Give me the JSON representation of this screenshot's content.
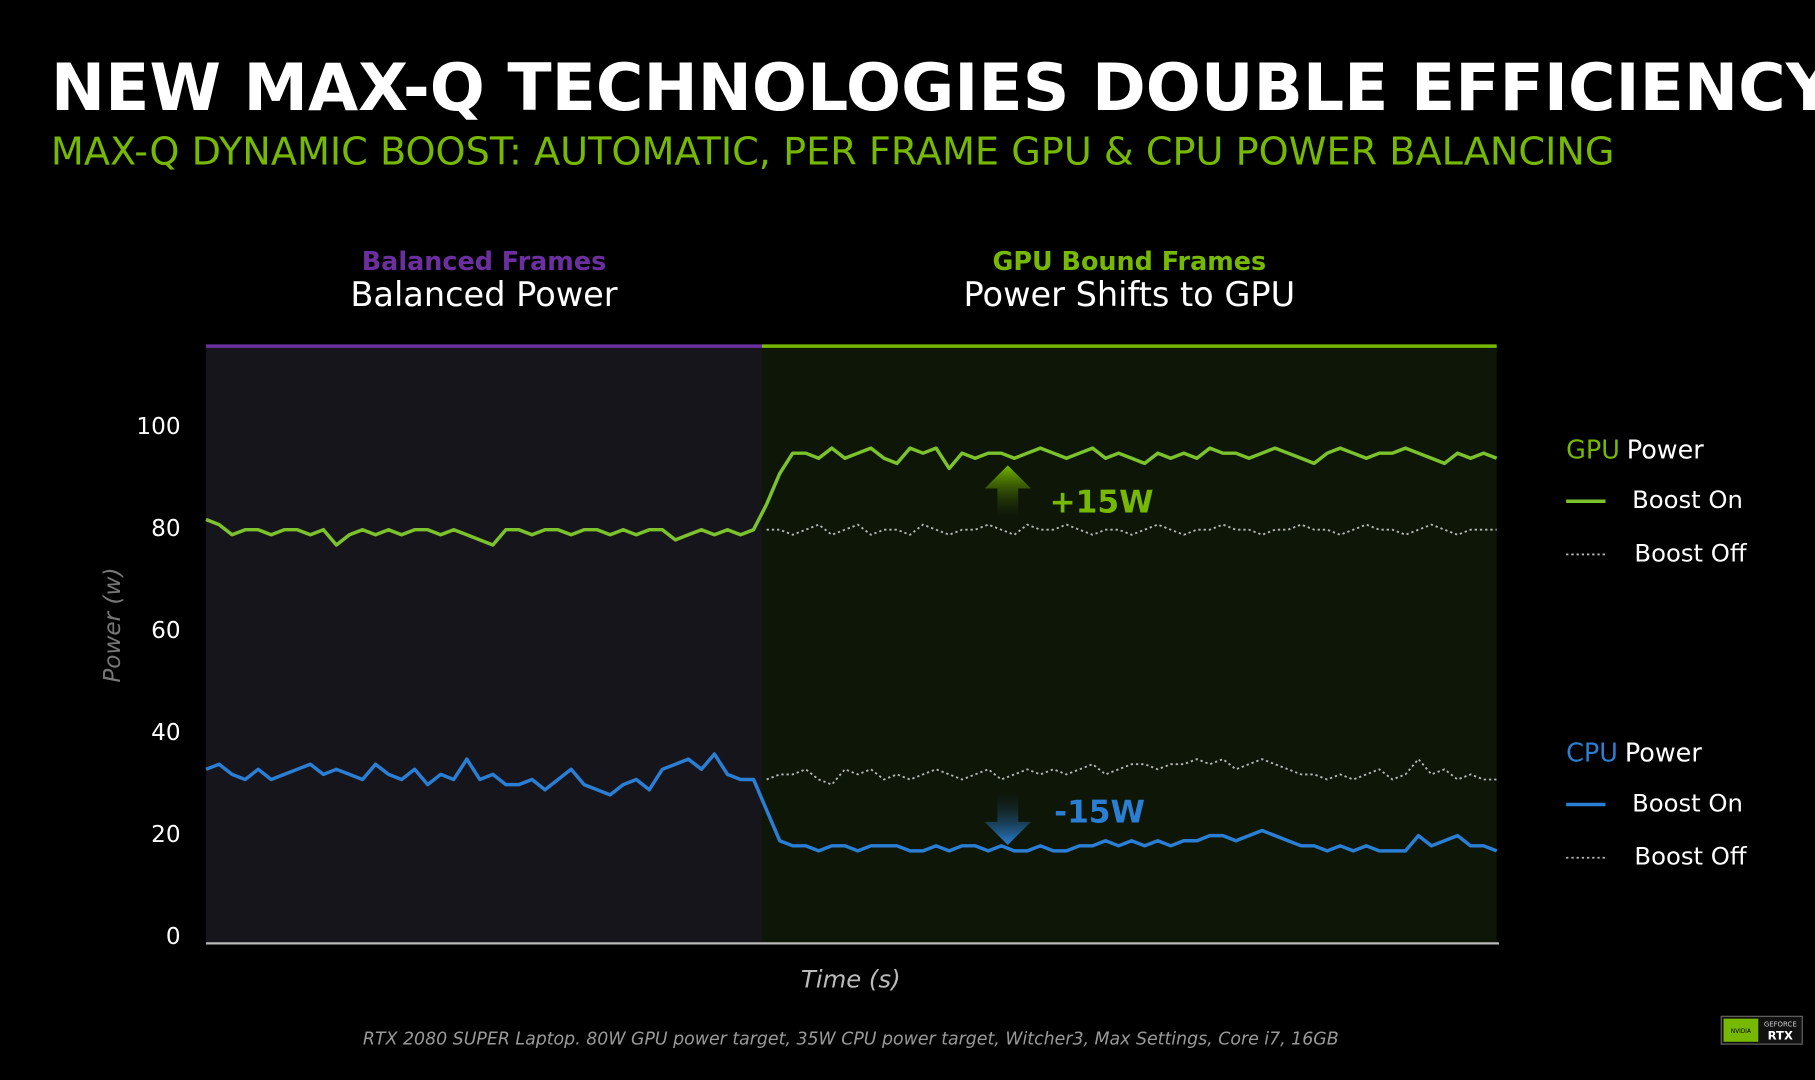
{
  "chart_data": {
    "type": "line",
    "title": "NEW MAX-Q TECHNOLOGIES DOUBLE EFFICIENCY",
    "subtitle": "MAX-Q DYNAMIC BOOST: AUTOMATIC, PER FRAME GPU & CPU POWER BALANCING",
    "regions": [
      {
        "label": "Balanced Frames",
        "title": "Balanced Power",
        "color": "#6b2fa0"
      },
      {
        "label": "GPU Bound Frames",
        "title": "Power Shifts to GPU",
        "color": "#76b900"
      }
    ],
    "y_label": "Power (w)",
    "x_label": "Time (s)",
    "ylim": [
      0,
      116
    ],
    "yticks": [
      0,
      20,
      40,
      60,
      80,
      100
    ],
    "legend_groups": [
      {
        "label": "GPU",
        "text": "Power",
        "color": "#76b900"
      },
      {
        "label": "CPU",
        "text": "Power",
        "color": "#2a7fd4"
      }
    ],
    "series": [
      {
        "name": "Boost On",
        "group": "GPU",
        "color": "#7cc22c",
        "dash": false,
        "values": [
          82,
          81,
          79,
          80,
          80,
          79,
          80,
          80,
          79,
          80,
          77,
          79,
          80,
          79,
          80,
          79,
          80,
          80,
          79,
          80,
          79,
          78,
          77,
          80,
          80,
          79,
          80,
          80,
          79,
          80,
          80,
          79,
          80,
          79,
          80,
          80,
          78,
          79,
          80,
          79,
          80,
          79,
          80,
          85,
          91,
          95,
          95,
          94,
          96,
          94,
          95,
          96,
          94,
          93,
          96,
          95,
          96,
          92,
          95,
          94,
          95,
          95,
          94,
          95,
          96,
          95,
          94,
          95,
          96,
          94,
          95,
          94,
          93,
          95,
          94,
          95,
          94,
          96,
          95,
          95,
          94,
          95,
          96,
          95,
          94,
          93,
          95,
          96,
          95,
          94,
          95,
          95,
          96,
          95,
          94,
          93,
          95,
          94,
          95,
          94
        ]
      },
      {
        "name": "Boost Off",
        "group": "GPU",
        "color": "#b5b5b5",
        "dash": true,
        "values": [
          null,
          null,
          null,
          null,
          null,
          null,
          null,
          null,
          null,
          null,
          null,
          null,
          null,
          null,
          null,
          null,
          null,
          null,
          null,
          null,
          null,
          null,
          null,
          null,
          null,
          null,
          null,
          null,
          null,
          null,
          null,
          null,
          null,
          null,
          null,
          null,
          null,
          null,
          null,
          null,
          null,
          null,
          null,
          80,
          80,
          79,
          80,
          81,
          79,
          80,
          81,
          79,
          80,
          80,
          79,
          81,
          80,
          79,
          80,
          80,
          81,
          80,
          79,
          81,
          80,
          80,
          81,
          80,
          79,
          80,
          80,
          79,
          80,
          81,
          80,
          79,
          80,
          80,
          81,
          80,
          80,
          79,
          80,
          80,
          81,
          80,
          80,
          79,
          80,
          81,
          80,
          80,
          79,
          80,
          81,
          80,
          79,
          80,
          80,
          80
        ]
      },
      {
        "name": "Boost On",
        "group": "CPU",
        "color": "#2a7fd4",
        "dash": false,
        "values": [
          33,
          34,
          32,
          31,
          33,
          31,
          32,
          33,
          34,
          32,
          33,
          32,
          31,
          34,
          32,
          31,
          33,
          30,
          32,
          31,
          35,
          31,
          32,
          30,
          30,
          31,
          29,
          31,
          33,
          30,
          29,
          28,
          30,
          31,
          29,
          33,
          34,
          35,
          33,
          36,
          32,
          31,
          31,
          25,
          19,
          18,
          18,
          17,
          18,
          18,
          17,
          18,
          18,
          18,
          17,
          17,
          18,
          17,
          18,
          18,
          17,
          18,
          17,
          17,
          18,
          17,
          17,
          18,
          18,
          19,
          18,
          19,
          18,
          19,
          18,
          19,
          19,
          20,
          20,
          19,
          20,
          21,
          20,
          19,
          18,
          18,
          17,
          18,
          17,
          18,
          17,
          17,
          17,
          20,
          18,
          19,
          20,
          18,
          18,
          17
        ]
      },
      {
        "name": "Boost Off",
        "group": "CPU",
        "color": "#b5b5b5",
        "dash": true,
        "values": [
          null,
          null,
          null,
          null,
          null,
          null,
          null,
          null,
          null,
          null,
          null,
          null,
          null,
          null,
          null,
          null,
          null,
          null,
          null,
          null,
          null,
          null,
          null,
          null,
          null,
          null,
          null,
          null,
          null,
          null,
          null,
          null,
          null,
          null,
          null,
          null,
          null,
          null,
          null,
          null,
          null,
          null,
          null,
          31,
          32,
          32,
          33,
          31,
          30,
          33,
          32,
          33,
          31,
          32,
          31,
          32,
          33,
          32,
          31,
          32,
          33,
          31,
          32,
          33,
          32,
          33,
          32,
          33,
          34,
          32,
          33,
          34,
          34,
          33,
          34,
          34,
          35,
          34,
          35,
          33,
          34,
          35,
          34,
          33,
          32,
          32,
          31,
          32,
          31,
          32,
          33,
          31,
          32,
          35,
          32,
          33,
          31,
          32,
          31,
          31
        ]
      }
    ],
    "annotations": [
      {
        "text": "+15W",
        "color": "#76b900"
      },
      {
        "text": "-15W",
        "color": "#2a7fd4"
      }
    ],
    "footnote": "RTX 2080 SUPER Laptop. 80W GPU power target, 35W CPU power target, Witcher3, Max Settings, Core i7, 16GB",
    "logo": {
      "brand": "NVIDIA",
      "line1": "GEFORCE",
      "line2": "RTX"
    }
  }
}
